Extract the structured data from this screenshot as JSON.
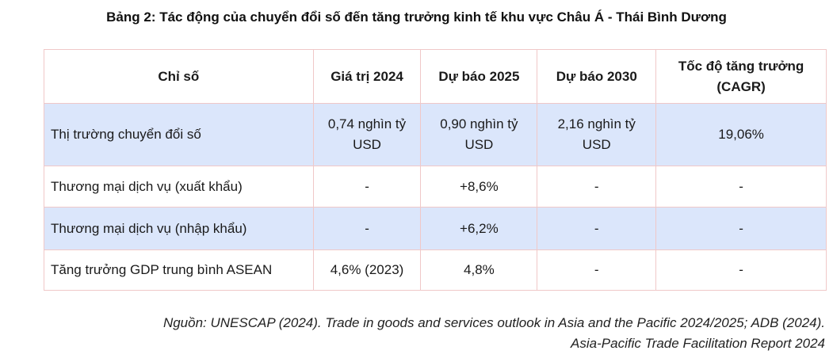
{
  "caption": "Bảng 2: Tác động của chuyển đổi số đến tăng trưởng kinh tế khu vực Châu Á - Thái Bình Dương",
  "table": {
    "headers": [
      "Chỉ số",
      "Giá trị 2024",
      "Dự báo 2025",
      "Dự báo 2030",
      "Tốc độ tăng trưởng (CAGR)"
    ],
    "rows": [
      [
        "Thị trường chuyển đổi số",
        "0,74 nghìn tỷ USD",
        "0,90 nghìn tỷ USD",
        "2,16 nghìn tỷ USD",
        "19,06%"
      ],
      [
        "Thương mại dịch vụ (xuất khẩu)",
        "-",
        "+8,6%",
        "-",
        "-"
      ],
      [
        "Thương mại dịch vụ (nhập khẩu)",
        "-",
        "+6,2%",
        "-",
        "-"
      ],
      [
        "Tăng trưởng GDP trung bình ASEAN",
        "4,6% (2023)",
        "4,8%",
        "-",
        "-"
      ]
    ]
  },
  "source": {
    "line1": "Nguồn: UNESCAP (2024). Trade in goods and services outlook in Asia and the Pacific 2024/2025; ADB (2024).",
    "line2": "Asia-Pacific Trade Facilitation Report 2024"
  },
  "colors": {
    "shaded_row": "#dbe6fb",
    "border": "#f0c8c8"
  }
}
